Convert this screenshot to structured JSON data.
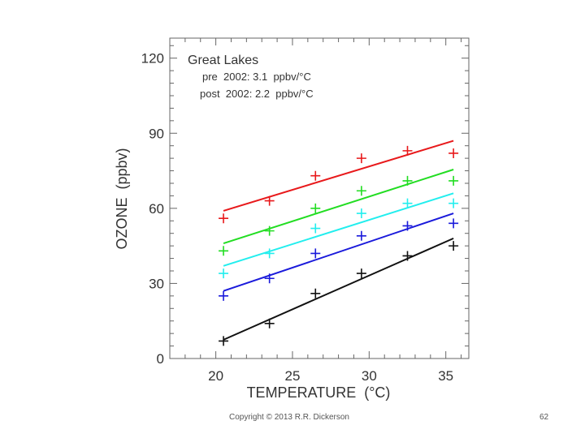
{
  "chart_data": {
    "type": "scatter",
    "title": "Great Lakes",
    "annotations": [
      "pre  2002: 3.1  ppbv/°C",
      "post  2002: 2.2  ppbv/°C"
    ],
    "xlabel": "TEMPERATURE  (°C)",
    "ylabel": "OZONE  (ppbv)",
    "xlim": [
      17,
      36.5
    ],
    "ylim": [
      0,
      128
    ],
    "xticks": [
      20,
      25,
      30,
      35
    ],
    "yticks": [
      0,
      30,
      60,
      90,
      120
    ],
    "x": [
      20.5,
      23.5,
      26.5,
      29.5,
      32.5,
      35.5
    ],
    "grid": false,
    "series": [
      {
        "color": "#e8191b",
        "values": [
          56,
          63,
          73,
          80,
          83,
          82
        ],
        "fit": [
          59,
          87
        ]
      },
      {
        "color": "#22dd22",
        "values": [
          43,
          51,
          60,
          67,
          71,
          71
        ],
        "fit": [
          46,
          75.5
        ]
      },
      {
        "color": "#22eeee",
        "values": [
          34,
          42,
          52,
          58,
          62,
          62
        ],
        "fit": [
          37,
          66
        ]
      },
      {
        "color": "#1a1adb",
        "values": [
          25,
          32,
          42,
          49,
          53,
          54
        ],
        "fit": [
          27,
          58
        ]
      },
      {
        "color": "#111111",
        "values": [
          7,
          14,
          26,
          34,
          41,
          45
        ],
        "fit": [
          7.5,
          48
        ]
      }
    ]
  },
  "footer": {
    "copyright": "Copyright © 2013  R.R. Dickerson",
    "page_number": "62"
  }
}
